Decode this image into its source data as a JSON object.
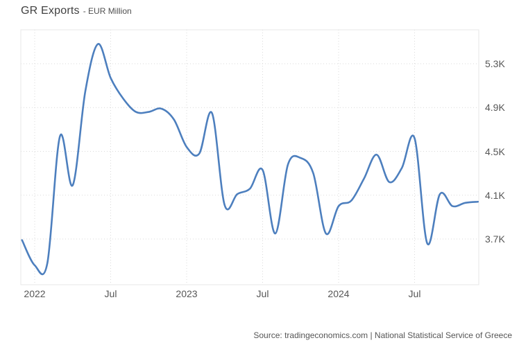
{
  "title": "GR Exports",
  "subtitle": "- EUR Million",
  "source": "Source: tradingeconomics.com | National Statistical Service of Greece",
  "colors": {
    "line": "#4d7fbe",
    "grid_dotted": "#d9d9d9",
    "plot_border": "#e7e7e7",
    "title_text": "#404040",
    "axis_text": "#565656",
    "source_text": "#555555",
    "background": "#ffffff"
  },
  "chart_data": {
    "type": "line",
    "title": "GR Exports",
    "ylabel_unit": "EUR Million",
    "legend": "none",
    "grid": "dotted",
    "x": [
      "Dec 2021",
      "Jan 2022",
      "Feb 2022",
      "Mar 2022",
      "Apr 2022",
      "May 2022",
      "Jun 2022",
      "Jul 2022",
      "Aug 2022",
      "Sep 2022",
      "Oct 2022",
      "Nov 2022",
      "Dec 2022",
      "Jan 2023",
      "Feb 2023",
      "Mar 2023",
      "Apr 2023",
      "May 2023",
      "Jun 2023",
      "Jul 2023",
      "Aug 2023",
      "Sep 2023",
      "Oct 2023",
      "Nov 2023",
      "Dec 2023",
      "Jan 2024",
      "Feb 2024",
      "Mar 2024",
      "Apr 2024",
      "May 2024",
      "Jun 2024",
      "Jul 2024",
      "Aug 2024",
      "Sep 2024",
      "Oct 2024",
      "Nov 2024",
      "Dec 2024"
    ],
    "values": [
      3690,
      3460,
      3480,
      4640,
      4190,
      5050,
      5480,
      5170,
      4980,
      4860,
      4860,
      4890,
      4790,
      4540,
      4480,
      4850,
      4010,
      4110,
      4160,
      4330,
      3750,
      4380,
      4440,
      4300,
      3750,
      4000,
      4050,
      4250,
      4470,
      4220,
      4350,
      4620,
      3660,
      4110,
      4000,
      4030,
      4040
    ],
    "x_ticks": [
      {
        "label": "2022",
        "month_index": 1
      },
      {
        "label": "Jul",
        "month_index": 7
      },
      {
        "label": "2023",
        "month_index": 13
      },
      {
        "label": "Jul",
        "month_index": 19
      },
      {
        "label": "2024",
        "month_index": 25
      },
      {
        "label": "Jul",
        "month_index": 31
      }
    ],
    "y_ticks": [
      {
        "label": "5.3K",
        "value": 5300
      },
      {
        "label": "4.9K",
        "value": 4900
      },
      {
        "label": "4.5K",
        "value": 4500
      },
      {
        "label": "4.1K",
        "value": 4100
      },
      {
        "label": "3.7K",
        "value": 3700
      }
    ],
    "ylim": [
      3280,
      5610
    ]
  }
}
